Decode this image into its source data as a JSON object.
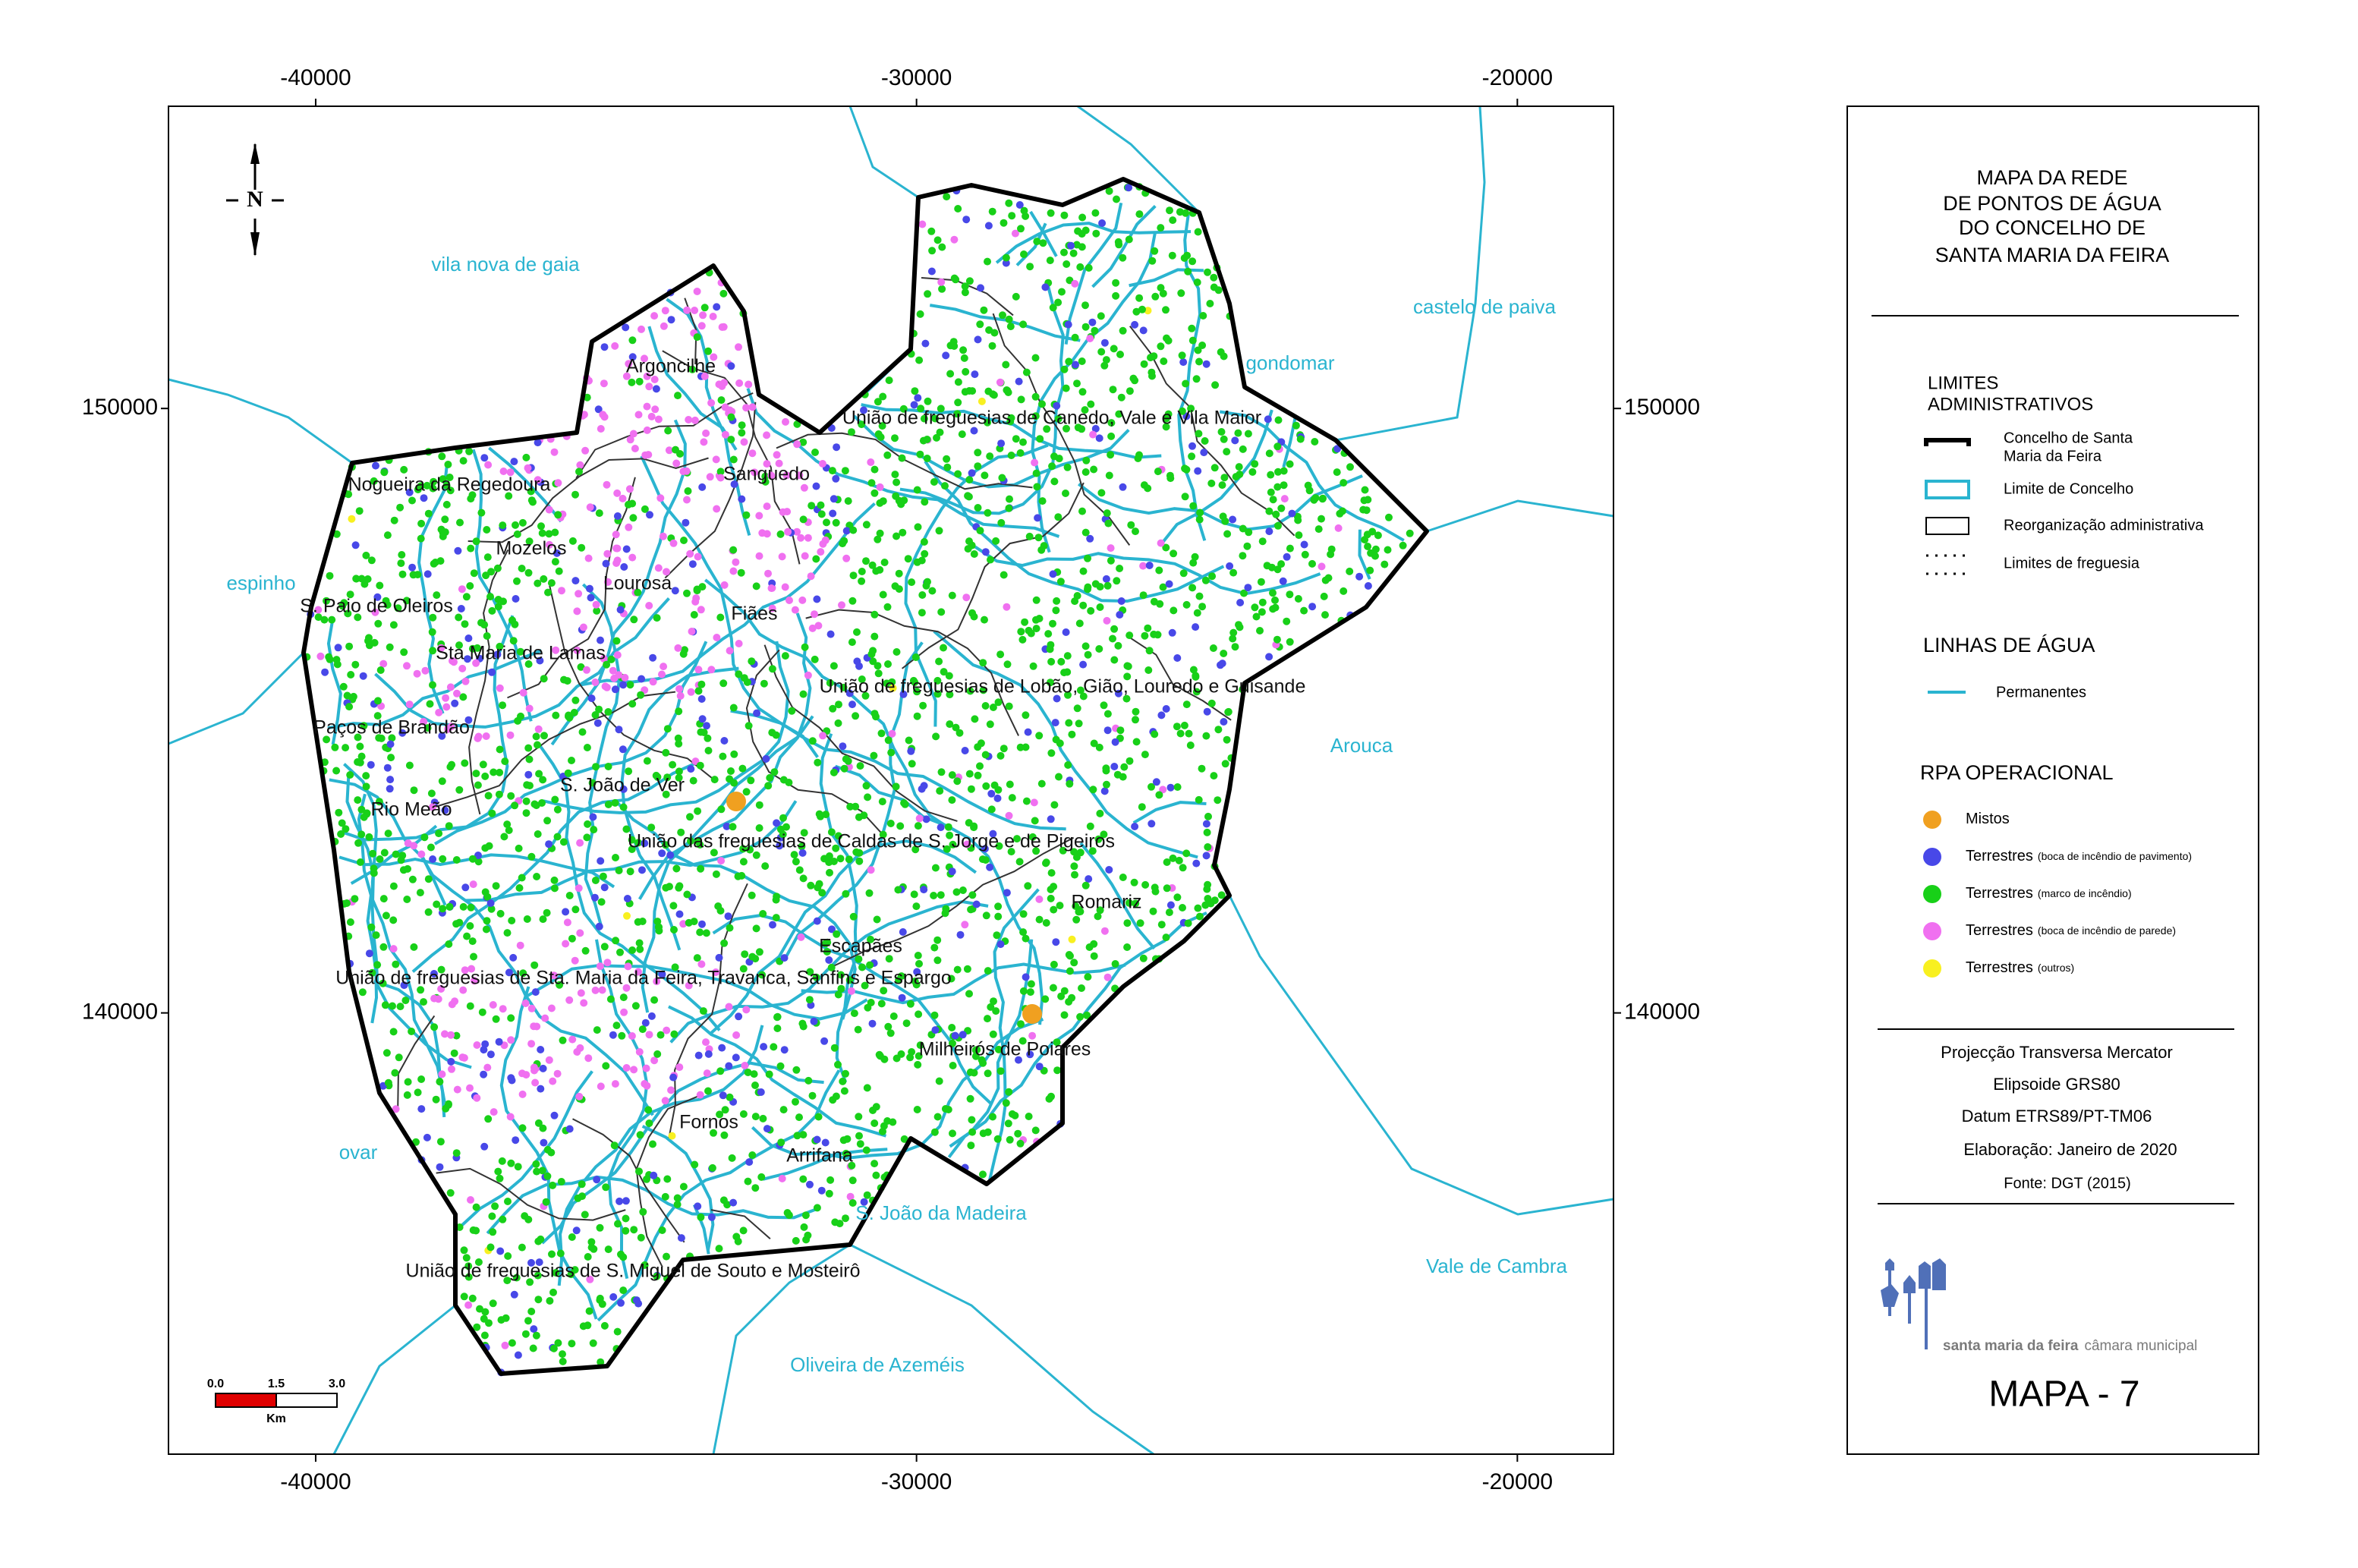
{
  "map": {
    "xlim": [
      -42450,
      -18400
    ],
    "ylim": [
      132700,
      155000
    ],
    "xticks": [
      -40000,
      -30000,
      -20000
    ],
    "yticks": [
      140000,
      150000
    ],
    "north": "N",
    "neighbours": [
      "vila nova de gaia",
      "castelo de paiva",
      "gondomar",
      "espinho",
      "Arouca",
      "ovar",
      "S. João da Madeira",
      "Vale de Cambra",
      "Oliveira de Azeméis"
    ],
    "parishes": [
      "Argoncilhe",
      "União de freguesias de Canedo, Vale e Vila Maior",
      "Nogueira da Regedoura",
      "Sanguedo",
      "Mozelos",
      "Lourosa",
      "Fiães",
      "S. Paio de Oleiros",
      "Sta Maria de Lamas",
      "União de freguesias de Lobão, Gião, Louredo e Guisande",
      "Paços de Brandão",
      "S. João de Ver",
      "Rio Meão",
      "União das freguesias de Caldas de S. Jorge e de Pigeiros",
      "Romariz",
      "Escapães",
      "União de freguesias de Sta. Maria da Feira, Travanca, Sanfins e Espargo",
      "Milheirós de Poiares",
      "Fornos",
      "Arrifana",
      "União de freguesias de S. Miguel de Souto e Mosteirô"
    ],
    "scale": {
      "labels": [
        "0.0",
        "1.5",
        "3.0"
      ],
      "unit": "Km"
    }
  },
  "legend": {
    "title": [
      "MAPA DA REDE",
      "DE PONTOS DE ÁGUA",
      "DO CONCELHO DE",
      "SANTA MARIA DA FEIRA"
    ],
    "limits": {
      "title": [
        "LIMITES",
        "ADMINISTRATIVOS"
      ],
      "items": [
        [
          "Concelho de Santa",
          "Maria da Feira"
        ],
        [
          "Limite de Concelho"
        ],
        [
          "Reorganização administrativa"
        ],
        [
          "Limites de freguesia"
        ]
      ]
    },
    "water": {
      "title": "LINHAS DE ÁGUA",
      "items": [
        "Permanentes"
      ]
    },
    "rpa": {
      "title": "RPA OPERACIONAL",
      "items": [
        {
          "name": "Mistos",
          "color": "#f0a020"
        },
        {
          "name": "Terrestres",
          "note": "(boca de incêndio de pavimento)",
          "color": "#4848e8"
        },
        {
          "name": "Terrestres",
          "note": "(marco de incêndio)",
          "color": "#18d018"
        },
        {
          "name": "Terrestres",
          "note": "(boca de incêndio de parede)",
          "color": "#f070f0"
        },
        {
          "name": "Terrestres",
          "note": "(outros)",
          "color": "#f8f020"
        }
      ]
    },
    "projection": [
      "Projecção Transversa Mercator",
      "Elipsoide GRS80",
      "Datum ETRS89/PT-TM06",
      "Elaboração: Janeiro de 2020",
      "Fonte: DGT (2015)"
    ],
    "logo": [
      "santa maria da feira",
      "câmara municipal"
    ],
    "map_id": "MAPA - 7"
  }
}
